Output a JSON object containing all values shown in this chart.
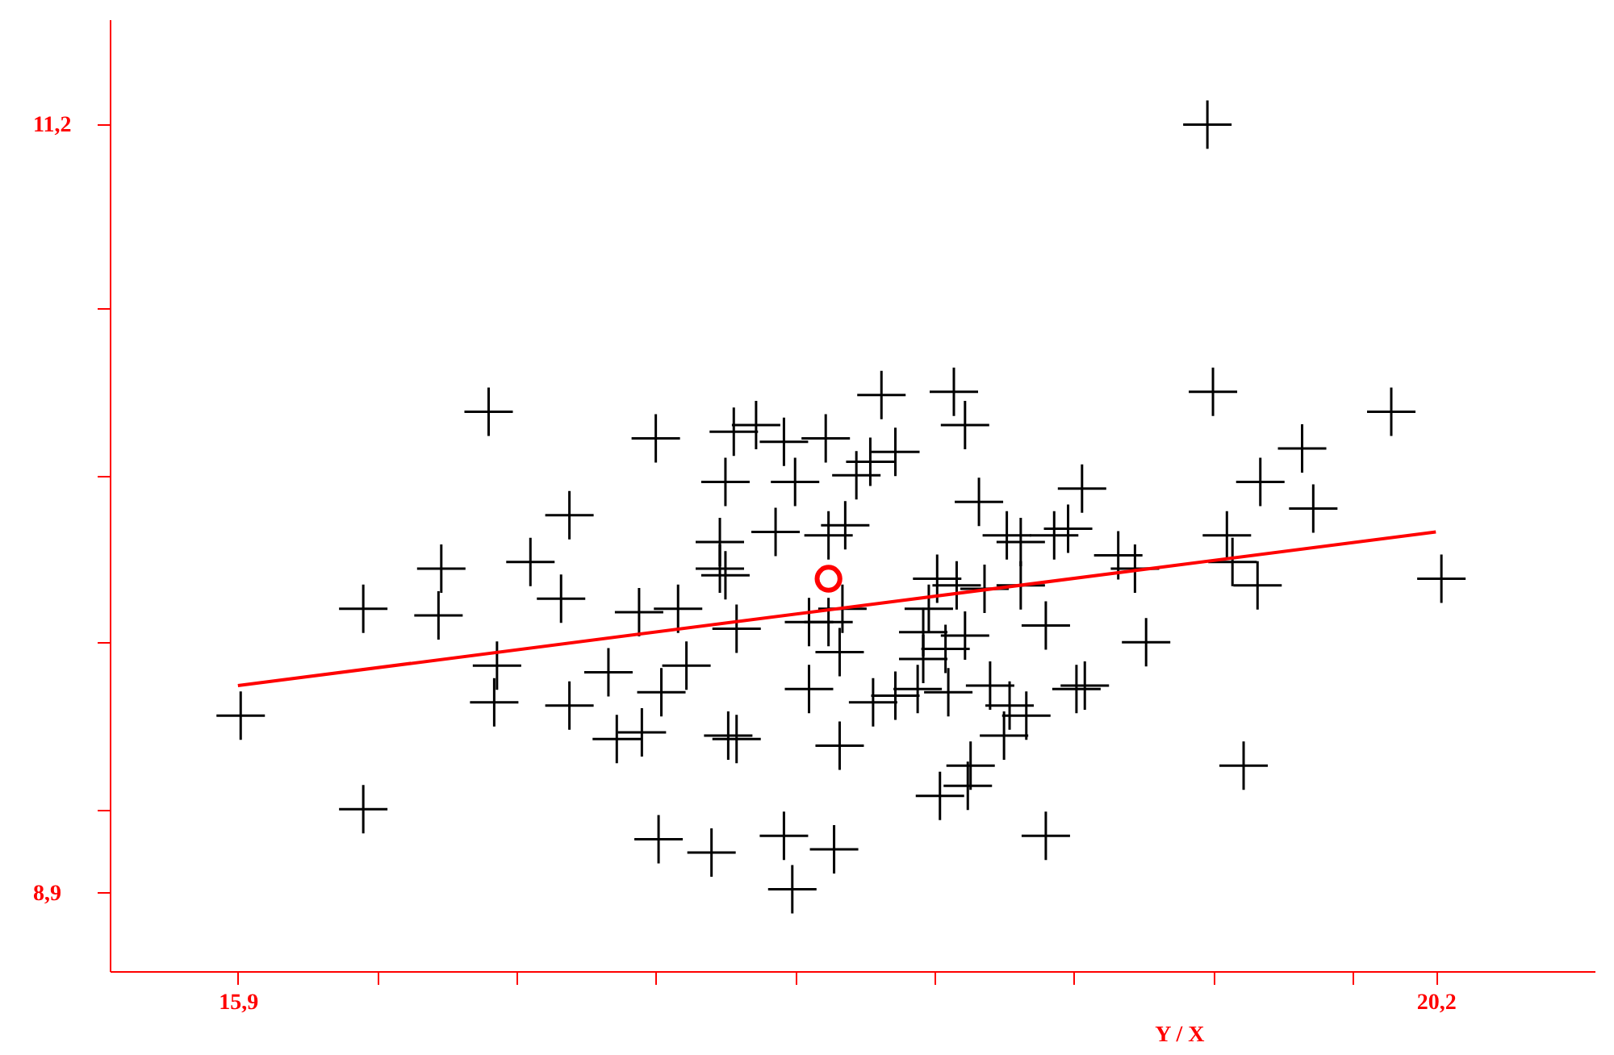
{
  "chart_data": {
    "type": "scatter",
    "xlabel": "Y / X",
    "xlim": [
      15.44,
      20.77
    ],
    "ylim": [
      8.665,
      11.515
    ],
    "xticks": [
      {
        "value": 15.9,
        "label": "15,9"
      },
      {
        "value": 16.4,
        "label": null
      },
      {
        "value": 16.9,
        "label": null
      },
      {
        "value": 17.4,
        "label": null
      },
      {
        "value": 17.9,
        "label": null
      },
      {
        "value": 18.4,
        "label": null
      },
      {
        "value": 18.9,
        "label": null
      },
      {
        "value": 19.4,
        "label": null
      },
      {
        "value": 19.9,
        "label": null
      },
      {
        "value": 20.2,
        "label": "20,2"
      }
    ],
    "yticks": [
      {
        "value": 8.9,
        "label": "8,9"
      },
      {
        "value": 9.15,
        "label": null
      },
      {
        "value": 9.65,
        "label": null
      },
      {
        "value": 10.15,
        "label": null
      },
      {
        "value": 10.65,
        "label": null
      },
      {
        "value": 11.2,
        "label": "11,2"
      }
    ],
    "grid": false,
    "series": [
      {
        "type": "scatter",
        "marker": "cross",
        "color": "#000000",
        "x": [
          19.38,
          16.8,
          18.21,
          18.47,
          19.4,
          20.04,
          17.4,
          17.68,
          17.76,
          17.86,
          18.01,
          18.51,
          18.26,
          19.72,
          17.65,
          17.9,
          18.12,
          18.17,
          19.57,
          18.56,
          18.93,
          17.09,
          19.76,
          17.63,
          17.83,
          18.02,
          18.08,
          18.66,
          18.71,
          18.83,
          18.88,
          19.06,
          19.12,
          19.45,
          16.63,
          16.95,
          17.63,
          17.65,
          18.41,
          18.71,
          20.22,
          19.47,
          19.56,
          16.35,
          16.62,
          17.06,
          17.34,
          17.48,
          18.02,
          18.07,
          18.38,
          18.48,
          18.58,
          18.36,
          18.51,
          18.8,
          16.83,
          17.23,
          17.51,
          17.69,
          17.95,
          18.06,
          18.44,
          18.36,
          19.16,
          16.82,
          17.09,
          17.42,
          17.95,
          18.18,
          18.26,
          18.34,
          18.45,
          18.6,
          18.67,
          18.73,
          18.91,
          18.94,
          15.91,
          17.26,
          17.35,
          17.66,
          17.69,
          18.06,
          18.65,
          18.53,
          18.52,
          18.42,
          19.51,
          16.35,
          17.41,
          17.6,
          17.86,
          18.04,
          18.8,
          17.89
        ],
        "values": [
          11.2,
          10.34,
          10.39,
          10.4,
          10.4,
          10.34,
          10.26,
          10.28,
          10.3,
          10.25,
          10.26,
          10.3,
          10.22,
          10.23,
          10.13,
          10.13,
          10.15,
          10.19,
          10.13,
          10.07,
          10.11,
          10.03,
          10.05,
          9.95,
          9.98,
          9.97,
          10.0,
          9.97,
          9.95,
          9.97,
          9.99,
          9.91,
          9.87,
          9.97,
          9.87,
          9.89,
          9.87,
          9.85,
          9.84,
          9.82,
          9.84,
          9.89,
          9.82,
          9.75,
          9.73,
          9.78,
          9.74,
          9.75,
          9.71,
          9.75,
          9.75,
          9.82,
          9.81,
          9.68,
          9.67,
          9.7,
          9.58,
          9.56,
          9.58,
          9.69,
          9.71,
          9.62,
          9.63,
          9.6,
          9.65,
          9.47,
          9.46,
          9.5,
          9.51,
          9.47,
          9.49,
          9.51,
          9.5,
          9.52,
          9.46,
          9.43,
          9.51,
          9.52,
          9.43,
          9.36,
          9.38,
          9.37,
          9.36,
          9.34,
          9.37,
          9.28,
          9.22,
          9.19,
          9.28,
          9.15,
          9.06,
          9.02,
          9.07,
          9.03,
          9.07,
          8.91
        ]
      },
      {
        "type": "line",
        "marker": "none",
        "color": "#ff0000",
        "x": [
          15.9,
          20.2
        ],
        "values": [
          9.52,
          9.98
        ]
      },
      {
        "type": "scatter",
        "marker": "circle",
        "color": "#ff0000",
        "x": [
          18.02
        ],
        "values": [
          9.84
        ]
      }
    ]
  }
}
